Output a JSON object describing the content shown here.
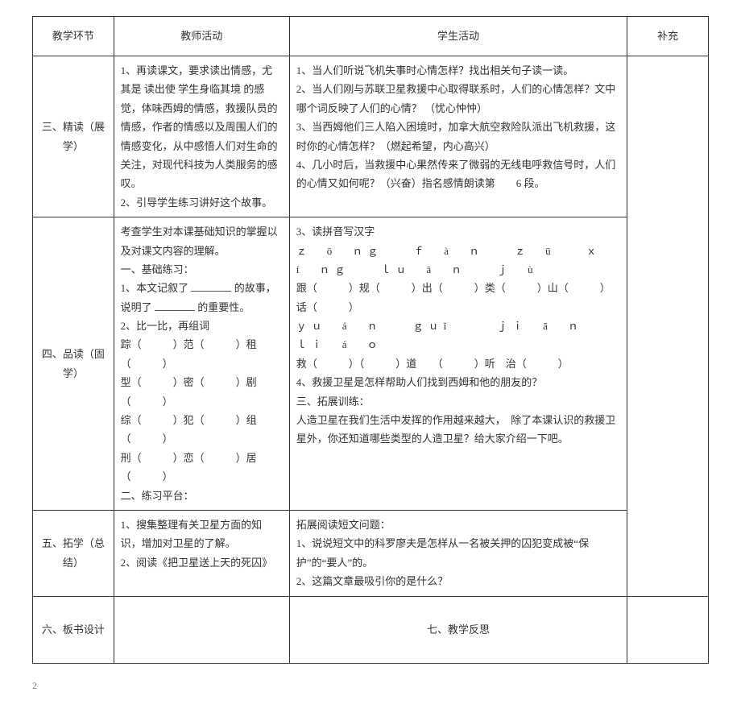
{
  "header": {
    "c1": "教学环节",
    "c2": "教师活动",
    "c3": "学生活动",
    "c4": "补充"
  },
  "row3": {
    "stage": "三、精读（展学）",
    "teacher": "1、再读课文，要求读出情感，尤其是 读出使 学生身临其境 的感觉，体味西姆的情感，救援队员的情感，作者的情感以及周围人们的情感变化，从中感悟人们对生命的关注，对现代科技为人类服务的感叹。\n2、引导学生练习讲好这个故事。",
    "student": "1、当人们听说飞机失事时心情怎样？找出相关句子读一读。\n2、当人们刚与苏联卫星救援中心取得联系时，人们的心情怎样？文中哪个词反映了人们的心情？ （忧心忡忡）\n3、当西姆他们三人陷入困境时，加拿大航空救险队派出飞机救援，这时你的心情怎样？（燃起希望，内心高兴）\n4、几小时后，当救援中心果然传来了微弱的无线电呼救信号时，人们的心情又如何呢？（兴奋）指名感情朗读第　　6 段。"
  },
  "row4": {
    "stage": "四、品读（固学）",
    "teacher_pre": "考查学生对本课基础知识的掌握以及对课文内容的理解。\n一、基础练习：",
    "teacher_line1a": "1、本文记叙了",
    "teacher_line1b": "的故事，",
    "teacher_line2a": "说明了",
    "teacher_line2b": "的重要性。",
    "teacher_bicibi": "2、比一比，再组词",
    "teacher_words": [
      [
        "踪（　　　）",
        "范（　　　）",
        "租（　　　）"
      ],
      [
        "型（　　　）",
        "密（　　　）",
        "剧（　　　）"
      ],
      [
        "综（　　　）",
        "犯（　　　）",
        "组（　　　）"
      ],
      [
        "刑（　　　）",
        "恋（　　　）",
        "居（　　　）"
      ]
    ],
    "teacher_post": "二、练习平台：",
    "student_title": "3、读拼音写汉字",
    "student_pinyin1": "ｚ　ō　ｎｇ　　ｆ　à　ｎ　　ｚ　ū　　ｘ　í　ｎｇ　　ｌｕ　ā　ｎ　　ｊ　ù",
    "student_han1": "跟（　　　）规（　　　）出（　　　）类（　　　）山（　　　）话（　　　）",
    "student_pinyin2": "ｙｕ　á　ｎ　　ｇｕǐ　　　ｊｉ　ā　ｎ　　ｌｉ　á　ｏ",
    "student_han2": "救（　　　）（　　　）道　　（　　　）听　治（　　　）",
    "student_q4": "4、救援卫星是怎样帮助人们找到西姆和他的朋友的？",
    "student_ext_t": "三、拓展训练：",
    "student_ext": "人造卫星在我们生活中发挥的作用越来越大，　除了本课认识的救援卫星外，你还知道哪些类型的人造卫星？给大家介绍一下吧。"
  },
  "row5": {
    "stage": "五、拓学（总结）",
    "teacher": "1、搜集整理有关卫星方面的知识，增加对卫星的了解。\n2、阅读《把卫星送上天的死囚》",
    "student": "拓展阅读短文问题：\n1、说说短文中的科罗廖夫是怎样从一名被关押的囚犯变成被“保护”的“要人”的。\n2、这篇文章最吸引你的是什么？"
  },
  "row6": {
    "c1": "六、板书设计",
    "c2": "七、教学反思"
  },
  "page_num": "2"
}
